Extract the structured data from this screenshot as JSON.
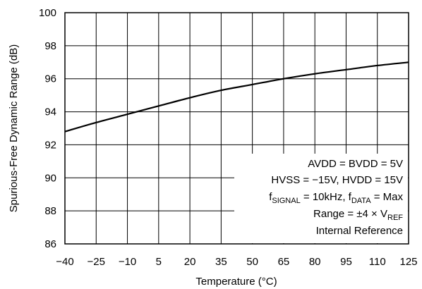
{
  "chart_data": {
    "type": "line",
    "title": "",
    "xlabel": "Temperature (°C)",
    "ylabel": "Spurious-Free Dynamic Range (dB)",
    "xlim": [
      -40,
      125
    ],
    "ylim": [
      86,
      100
    ],
    "xticks": [
      -40,
      -25,
      -10,
      5,
      20,
      35,
      50,
      65,
      80,
      95,
      110,
      125
    ],
    "xtick_labels": [
      "−40",
      "−25",
      "−10",
      "5",
      "20",
      "35",
      "50",
      "65",
      "80",
      "95",
      "110",
      "125"
    ],
    "yticks": [
      86,
      88,
      90,
      92,
      94,
      96,
      98,
      100
    ],
    "ytick_labels": [
      "86",
      "88",
      "90",
      "92",
      "94",
      "96",
      "98",
      "100"
    ],
    "grid": true,
    "series": [
      {
        "x": [
          -40,
          -25,
          -10,
          5,
          20,
          35,
          50,
          65,
          80,
          95,
          110,
          125
        ],
        "y": [
          92.8,
          93.35,
          93.85,
          94.35,
          94.85,
          95.3,
          95.65,
          96.0,
          96.3,
          96.55,
          96.8,
          97.0
        ]
      }
    ],
    "annotations": [
      {
        "segments": [
          {
            "text": "AVDD = BVDD = 5V"
          }
        ]
      },
      {
        "segments": [
          {
            "text": "HVSS = −15V, HVDD = 15V"
          }
        ]
      },
      {
        "segments": [
          {
            "text": "f"
          },
          {
            "text": "SIGNAL",
            "sub": true
          },
          {
            "text": " = 10kHz, f"
          },
          {
            "text": "DATA",
            "sub": true
          },
          {
            "text": " = Max"
          }
        ]
      },
      {
        "segments": [
          {
            "text": "Range = ±4 × V"
          },
          {
            "text": "REF",
            "sub": true
          }
        ]
      },
      {
        "segments": [
          {
            "text": "Internal Reference"
          }
        ]
      }
    ]
  }
}
